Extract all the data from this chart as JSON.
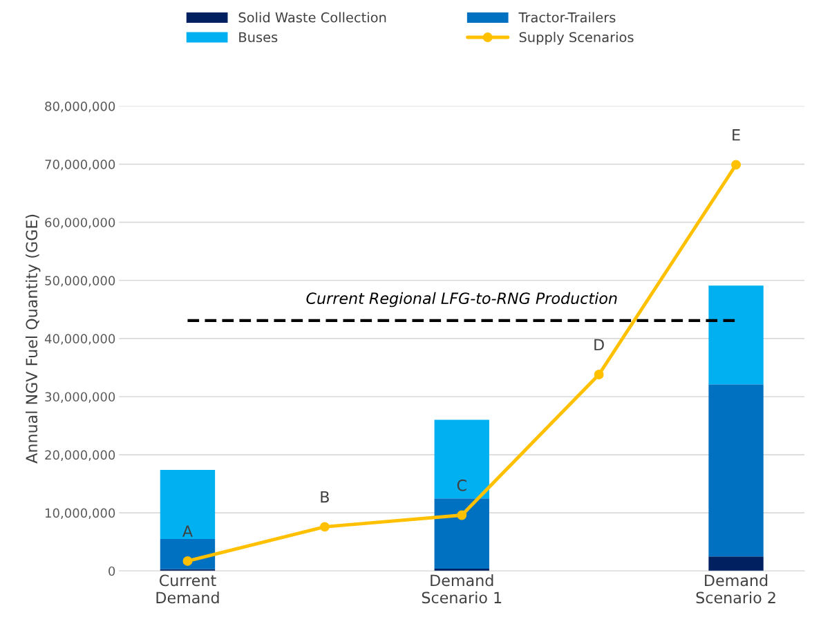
{
  "chart_data": {
    "type": "bar",
    "stacked": true,
    "ylabel": "Annual NGV Fuel Quantity (GGE)",
    "categories": [
      "Current\nDemand",
      null,
      "Demand\nScenario 1",
      null,
      "Demand\nScenario 2"
    ],
    "series": [
      {
        "name": "Solid Waste Collection",
        "color": "#002060",
        "values": [
          300000,
          null,
          400000,
          null,
          2500000
        ]
      },
      {
        "name": "Tractor-Trailers",
        "color": "#0070c0",
        "values": [
          5200000,
          null,
          12100000,
          null,
          29600000
        ]
      },
      {
        "name": "Buses",
        "color": "#00b0f0",
        "values": [
          11900000,
          null,
          13500000,
          null,
          17000000
        ]
      },
      {
        "name": "Supply Scenarios",
        "type": "line",
        "color": "#ffc000",
        "marker": "circle",
        "values": [
          1700000,
          7600000,
          9600000,
          33800000,
          69900000
        ],
        "value_labels": [
          "A",
          "B",
          "C",
          "D",
          "E"
        ]
      }
    ],
    "ylim": [
      0,
      80000000
    ],
    "yticks": [
      0,
      {
        "value": 10000000,
        "label": "10,000,000"
      },
      {
        "value": 20000000,
        "label": "20,000,000"
      },
      {
        "value": 30000000,
        "label": "30,000,000"
      },
      {
        "value": 40000000,
        "label": "40,000,000"
      },
      {
        "value": 50000000,
        "label": "50,000,000"
      },
      {
        "value": 60000000,
        "label": "60,000,000"
      },
      {
        "value": 70000000,
        "label": "70,000,000"
      },
      {
        "value": 80000000,
        "label": "80,000,000"
      }
    ],
    "ref_lines": [
      {
        "axis": "y",
        "value": 43100000,
        "label": "Current Regional LFG-to-RNG Production",
        "color": "#000000",
        "line_style": "dashed"
      }
    ],
    "grid": "y",
    "legend": "top"
  }
}
